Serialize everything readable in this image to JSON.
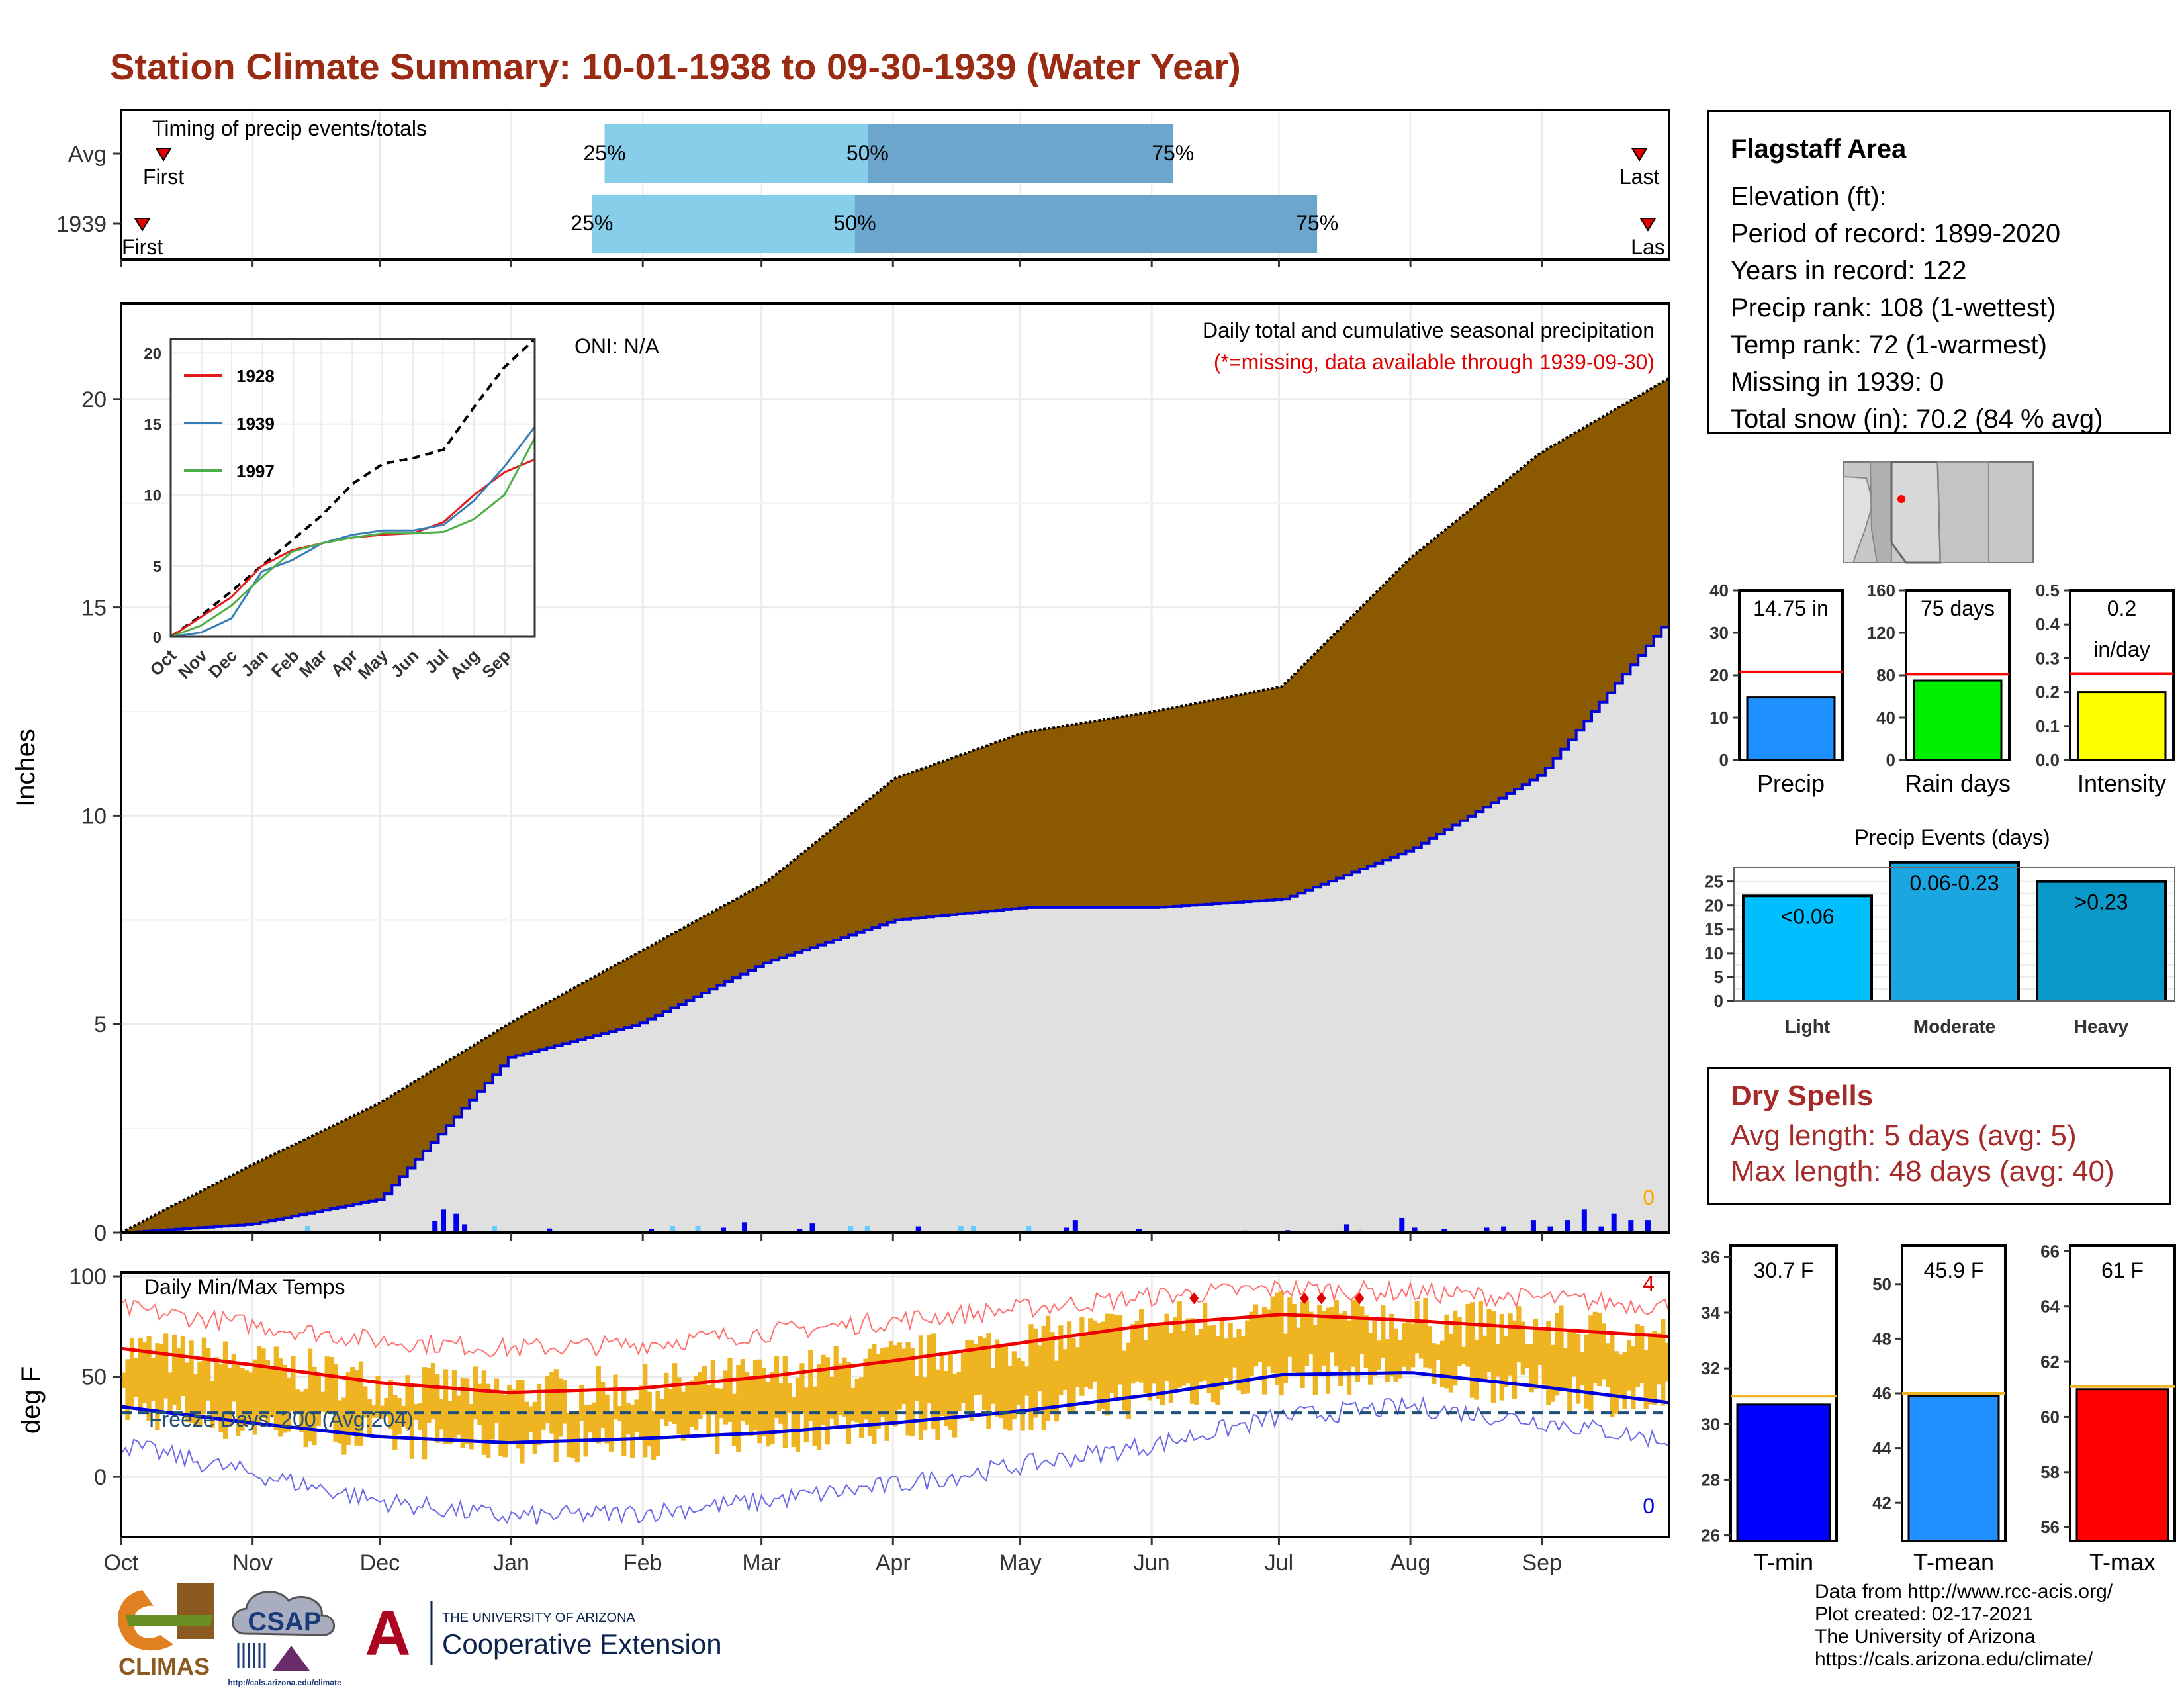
{
  "title": "Station Climate Summary: 10-01-1938 to 09-30-1939 (Water Year)",
  "timing": {
    "title": "Timing of precip events/totals",
    "rows": [
      {
        "label": "Avg",
        "first": "First",
        "p25": "25%",
        "p50": "50%",
        "p75": "75%",
        "last": "Last",
        "first_day": 10,
        "p25_day": 114,
        "p50_day": 176,
        "p75_day": 248,
        "last_day": 358
      },
      {
        "label": "1939",
        "first": "First",
        "p25": "25%",
        "p50": "50%",
        "p75": "75%",
        "last": "Las",
        "first_day": 5,
        "p25_day": 111,
        "p50_day": 173,
        "p75_day": 282,
        "last_day": 360
      }
    ]
  },
  "info": {
    "name": "Flagstaff Area",
    "lines": [
      "Elevation (ft):",
      "Period of record: 1899-2020",
      "Years in record: 122",
      "Precip rank: 108 (1-wettest)",
      "Temp rank: 72 (1-warmest)",
      "Missing in 1939: 0",
      "Total snow (in): 70.2 (84 % avg)"
    ]
  },
  "main_chart": {
    "ylabel": "Inches",
    "yticks": [
      "0",
      "5",
      "10",
      "15",
      "20"
    ],
    "note1": "Daily total and cumulative seasonal precipitation",
    "note2": "(*=missing, data available through 1939-09-30)",
    "oni": "ONI: N/A",
    "zero_label": "0",
    "colors": {
      "avg_fill": "#8b5a00",
      "year_fill": "#e0e0e0",
      "year_line": "#0000dd"
    }
  },
  "inset": {
    "yticks": [
      "0",
      "5",
      "10",
      "15",
      "20"
    ],
    "months": [
      "Oct",
      "Nov",
      "Dec",
      "Jan",
      "Feb",
      "Mar",
      "Apr",
      "May",
      "Jun",
      "Jul",
      "Aug",
      "Sep"
    ],
    "legend": [
      {
        "name": "1928",
        "color": "#e41a1c"
      },
      {
        "name": "1939",
        "color": "#377eb8"
      },
      {
        "name": "1997",
        "color": "#4daf4a"
      }
    ]
  },
  "temp_chart": {
    "ylabel": "deg F",
    "title": "Daily Min/Max Temps",
    "freeze": "Freeze Days: 200 (Avg:204)",
    "yticks": [
      "0",
      "50",
      "100"
    ],
    "red_count": "4",
    "blue_count": "0"
  },
  "months": [
    "Oct",
    "Nov",
    "Dec",
    "Jan",
    "Feb",
    "Mar",
    "Apr",
    "May",
    "Jun",
    "Jul",
    "Aug",
    "Sep"
  ],
  "mini_bars": [
    {
      "label": "Precip",
      "value_text": "14.75 in",
      "yticks": [
        "0",
        "10",
        "20",
        "30",
        "40"
      ],
      "value": 14.75,
      "avg": 20.8,
      "ymax": 40,
      "color": "#1e90ff"
    },
    {
      "label": "Rain days",
      "value_text": "75 days",
      "yticks": [
        "0",
        "40",
        "80",
        "120",
        "160"
      ],
      "value": 75,
      "avg": 81,
      "ymax": 160,
      "color": "#00ee00"
    },
    {
      "label": "Intensity",
      "value_text": "0.2",
      "value_text2": "in/day",
      "yticks": [
        "0.0",
        "0.1",
        "0.2",
        "0.3",
        "0.4",
        "0.5"
      ],
      "value": 0.2,
      "avg": 0.255,
      "ymax": 0.5,
      "color": "#ffff00"
    }
  ],
  "events": {
    "title": "Precip Events (days)",
    "yticks": [
      "0",
      "5",
      "10",
      "15",
      "20",
      "25"
    ],
    "bars": [
      {
        "label": "Light",
        "range": "<0.06",
        "value": 22,
        "color": "#00bfff"
      },
      {
        "label": "Moderate",
        "range": "0.06-0.23",
        "value": 29,
        "color": "#1aa6e0"
      },
      {
        "label": "Heavy",
        "range": ">0.23",
        "value": 25,
        "color": "#0a98c8"
      }
    ]
  },
  "dry_spells": {
    "title": "Dry Spells",
    "avg": "Avg length: 5 days (avg: 5)",
    "max": "Max length: 48 days (avg: 40)"
  },
  "temp_bars": [
    {
      "label": "T-min",
      "value_text": "30.7 F",
      "yticks": [
        "26",
        "28",
        "30",
        "32",
        "34",
        "36"
      ],
      "value": 30.7,
      "avg": 31.0,
      "ymin": 25.8,
      "ymax": 36.4,
      "color": "#0000ff"
    },
    {
      "label": "T-mean",
      "value_text": "45.9 F",
      "yticks": [
        "42",
        "44",
        "46",
        "48",
        "50"
      ],
      "value": 45.9,
      "avg": 46.0,
      "ymin": 40.6,
      "ymax": 51.4,
      "color": "#1e90ff"
    },
    {
      "label": "T-max",
      "value_text": "61 F",
      "yticks": [
        "56",
        "58",
        "60",
        "62",
        "64",
        "66"
      ],
      "value": 61.0,
      "avg": 61.1,
      "ymin": 55.5,
      "ymax": 66.2,
      "color": "#ff0000"
    }
  ],
  "footer": [
    "Data from http://www.rcc-acis.org/",
    "Plot created: 02-17-2021",
    "The University of Arizona",
    "https://cals.arizona.edu/climate/"
  ],
  "logos": {
    "climas": "CLIMAS",
    "csap": "CSAP",
    "csap_url": "http://cals.arizona.edu/climate",
    "ua_small": "THE UNIVERSITY OF ARIZONA",
    "ua_big": "Cooperative Extension",
    "ua_letter": "A"
  },
  "chart_data": [
    {
      "type": "area",
      "title": "Daily total and cumulative seasonal precipitation",
      "ylabel": "Inches",
      "ylim": [
        0,
        22.3
      ],
      "x": [
        "Oct",
        "Nov",
        "Dec",
        "Jan",
        "Feb",
        "Mar",
        "Apr",
        "May",
        "Jun",
        "Jul",
        "Aug",
        "Sep",
        "Sep 30"
      ],
      "series": [
        {
          "name": "Average cumulative",
          "values": [
            0,
            1.6,
            3.1,
            5.0,
            6.7,
            8.4,
            10.9,
            12.0,
            12.5,
            13.1,
            16.2,
            18.7,
            20.5
          ]
        },
        {
          "name": "1939 cumulative",
          "values": [
            0,
            0.2,
            0.8,
            4.2,
            5.0,
            6.5,
            7.5,
            7.8,
            7.8,
            8.0,
            9.2,
            11.0,
            14.75
          ]
        }
      ]
    },
    {
      "type": "line",
      "ylim": [
        0,
        21
      ],
      "x": [
        "Oct",
        "Nov",
        "Dec",
        "Jan",
        "Feb",
        "Mar",
        "Apr",
        "May",
        "Jun",
        "Jul",
        "Aug",
        "Sep",
        "Sep 30"
      ],
      "series": [
        {
          "name": "",
          "values": [
            0,
            1.5,
            3.2,
            5.0,
            6.8,
            8.6,
            10.8,
            12.2,
            12.6,
            13.2,
            16.2,
            19.0,
            21.0
          ]
        },
        {
          "name": "1928",
          "values": [
            0,
            1.4,
            2.8,
            5.0,
            6.1,
            6.6,
            7.0,
            7.2,
            7.3,
            8.1,
            10.0,
            11.6,
            12.5
          ]
        },
        {
          "name": "1939",
          "values": [
            0,
            0.3,
            1.3,
            4.6,
            5.4,
            6.6,
            7.2,
            7.5,
            7.5,
            7.9,
            9.6,
            12.0,
            14.8
          ]
        },
        {
          "name": "1997",
          "values": [
            0,
            0.8,
            2.2,
            4.2,
            6.0,
            6.6,
            7.0,
            7.3,
            7.3,
            7.4,
            8.3,
            10.0,
            14.0
          ]
        }
      ]
    },
    {
      "type": "line",
      "title": "Daily Min/Max Temps",
      "ylabel": "deg F",
      "ylim": [
        -30,
        102
      ],
      "x": [
        "Oct",
        "Nov",
        "Dec",
        "Jan",
        "Feb",
        "Mar",
        "Apr",
        "May",
        "Jun",
        "Jul",
        "Aug",
        "Sep",
        "Sep 30"
      ],
      "series": [
        {
          "name": "Avg max",
          "values": [
            64,
            56,
            47,
            42,
            44,
            50,
            58,
            67,
            76,
            81,
            78,
            74,
            70
          ]
        },
        {
          "name": "Avg min",
          "values": [
            35,
            27,
            20,
            17,
            19,
            22,
            27,
            33,
            41,
            51,
            52,
            45,
            37
          ]
        },
        {
          "name": "Record max",
          "values": [
            84,
            76,
            68,
            64,
            66,
            72,
            78,
            84,
            90,
            94,
            92,
            89,
            85
          ]
        },
        {
          "name": "Record min",
          "values": [
            16,
            2,
            -12,
            -20,
            -18,
            -12,
            -4,
            6,
            16,
            30,
            35,
            28,
            18
          ]
        }
      ]
    },
    {
      "type": "bar",
      "categories": [
        "Precip"
      ],
      "values": [
        14.75
      ],
      "ylim": [
        0,
        40
      ]
    },
    {
      "type": "bar",
      "categories": [
        "Rain days"
      ],
      "values": [
        75
      ],
      "ylim": [
        0,
        160
      ]
    },
    {
      "type": "bar",
      "categories": [
        "Intensity"
      ],
      "values": [
        0.2
      ],
      "ylim": [
        0,
        0.5
      ]
    },
    {
      "type": "bar",
      "title": "Precip Events (days)",
      "categories": [
        "Light",
        "Moderate",
        "Heavy"
      ],
      "values": [
        22,
        29,
        25
      ],
      "ylim": [
        0,
        28
      ]
    },
    {
      "type": "bar",
      "categories": [
        "T-min"
      ],
      "values": [
        30.7
      ],
      "ylim": [
        25.8,
        36.4
      ]
    },
    {
      "type": "bar",
      "categories": [
        "T-mean"
      ],
      "values": [
        45.9
      ],
      "ylim": [
        40.6,
        51.4
      ]
    },
    {
      "type": "bar",
      "categories": [
        "T-max"
      ],
      "values": [
        61.0
      ],
      "ylim": [
        55.5,
        66.2
      ]
    }
  ]
}
